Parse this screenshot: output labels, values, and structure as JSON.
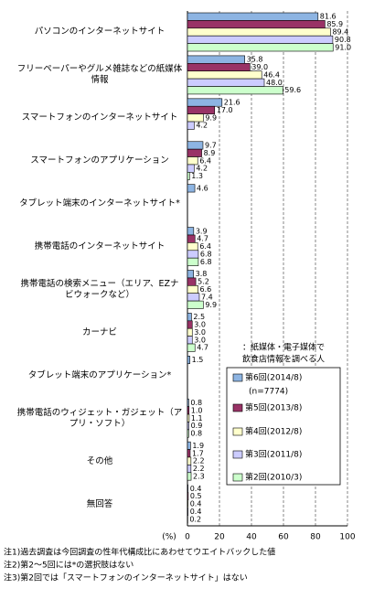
{
  "chart_data": {
    "type": "bar",
    "orientation": "horizontal",
    "categories": [
      "パソコンのインターネットサイト",
      "フリーペーパーやグルメ雑誌などの紙媒体情報",
      "スマートフォンのインターネットサイト",
      "スマートフォンのアプリケーション",
      "タブレット端末のインターネットサイト*",
      "携帯電話のインターネットサイト",
      "携帯電話の検索メニュー（エリア、EZナビウォークなど）",
      "カーナビ",
      "タブレット端末のアプリケーション*",
      "携帯電話のウィジェット・ガジェット（アプリ・ソフト）",
      "その他",
      "無回答"
    ],
    "series": [
      {
        "name": "第6回(2014/8)",
        "color": "#8db4e2",
        "values": [
          81.6,
          35.8,
          21.6,
          9.7,
          4.6,
          3.9,
          3.8,
          2.5,
          1.5,
          0.8,
          1.9,
          0.4
        ],
        "value_labels": [
          "81.6",
          "35.8",
          "21.6",
          "9.7",
          "4.6",
          "3.9",
          "3.8",
          "2.5",
          "1.5",
          "0.8",
          "1.9",
          "0.4"
        ]
      },
      {
        "name": "第5回(2013/8)",
        "color": "#993366",
        "values": [
          85.9,
          39.0,
          17.0,
          8.9,
          null,
          4.7,
          5.2,
          3.0,
          null,
          1.0,
          1.7,
          0.5
        ],
        "value_labels": [
          "85.9",
          "39.0",
          "17.0",
          "8.9",
          null,
          "4.7",
          "5.2",
          "3.0",
          null,
          "1.0",
          "1.7",
          "0.5"
        ]
      },
      {
        "name": "第4回(2012/8)",
        "color": "#ffffcc",
        "values": [
          89.4,
          46.4,
          9.9,
          6.4,
          null,
          6.4,
          6.6,
          3.0,
          null,
          1.1,
          2.2,
          0.4
        ],
        "value_labels": [
          "89.4",
          "46.4",
          "9.9",
          "6.4",
          null,
          "6.4",
          "6.6",
          "3.0",
          null,
          "1.1",
          "2.2",
          "0.4"
        ]
      },
      {
        "name": "第3回(2011/8)",
        "color": "#ccccff",
        "values": [
          90.8,
          48.0,
          4.2,
          4.2,
          null,
          6.8,
          7.4,
          3.0,
          null,
          0.9,
          2.2,
          0.4
        ],
        "value_labels": [
          "90.8",
          "48.0",
          "4.2",
          "4.2",
          null,
          "6.8",
          "7.4",
          "3.0",
          null,
          "0.9",
          "2.2",
          "0.4"
        ]
      },
      {
        "name": "第2回(2010/3)",
        "color": "#ccffcc",
        "values": [
          91.0,
          59.6,
          null,
          1.3,
          null,
          6.8,
          9.9,
          4.7,
          null,
          0.8,
          2.3,
          0.2
        ],
        "value_labels": [
          "91.0",
          "59.6",
          null,
          "1.3",
          null,
          "6.8",
          "9.9",
          "4.7",
          null,
          "0.8",
          "2.3",
          "0.2"
        ]
      }
    ],
    "legend_note": "(n=7774)",
    "annotation": [
      "：紙媒体・電子媒体で",
      "飲食店情報を調べる人"
    ],
    "x_label": "(%)",
    "xlim": [
      0,
      100
    ],
    "xticks": [
      0,
      20,
      40,
      60,
      80,
      100
    ],
    "grid": true,
    "notes": [
      "注1)過去調査は今回調査の性年代構成比にあわせてウエイトバックした値",
      "注2)第2～5回には*の選択肢はない",
      "注3)第2回では「スマートフォンのインターネットサイト」はない"
    ]
  }
}
